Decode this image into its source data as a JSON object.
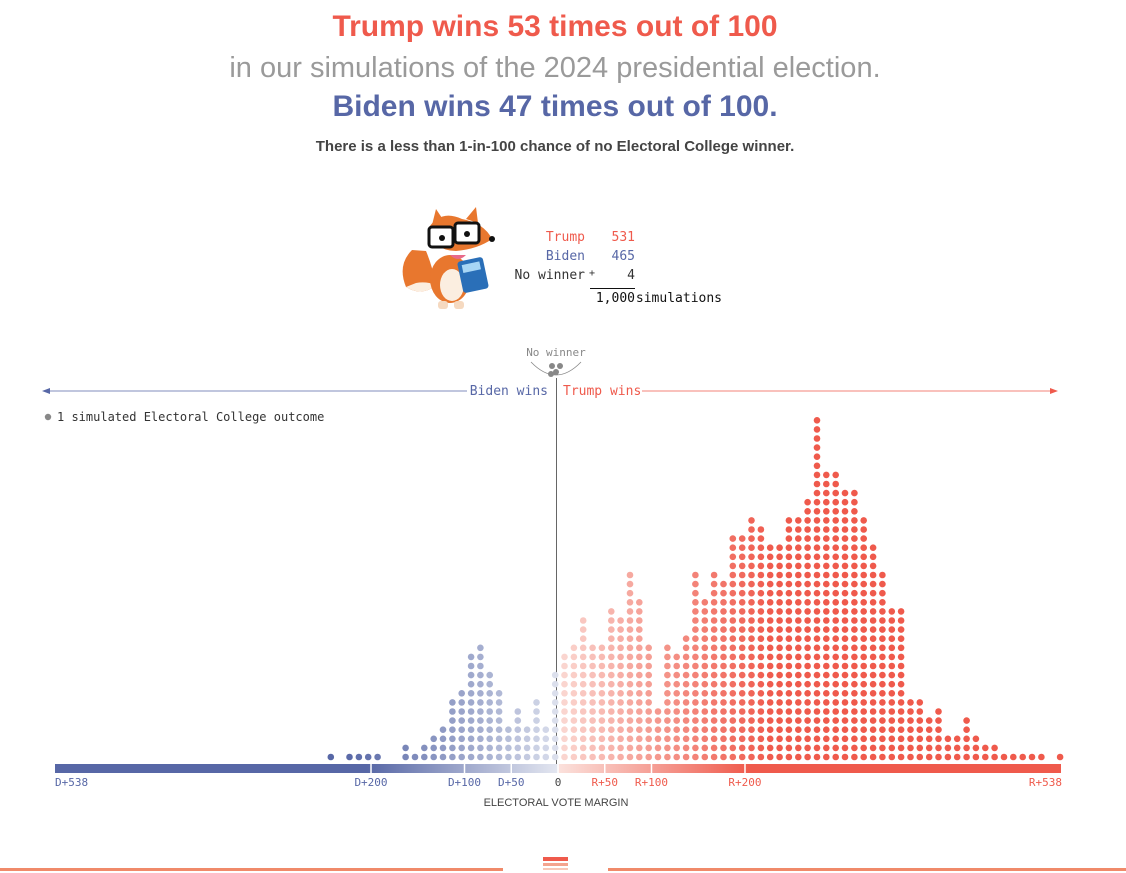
{
  "headline": {
    "trump_line": "Trump wins 53 times out of 100",
    "middle_line": "in our simulations of the 2024 presidential election.",
    "biden_line": "Biden wins 47 times out of 100.",
    "note": "There is a less than 1-in-100 chance of no Electoral College winner."
  },
  "tally": {
    "rows": [
      {
        "label": "Trump",
        "value": "531",
        "color": "#ef5a4c"
      },
      {
        "label": "Biden",
        "value": "465",
        "color": "#5767a6"
      },
      {
        "label": "No winner",
        "value": "4",
        "color": "#333333"
      }
    ],
    "plus_sign": "+",
    "total": "1,000",
    "total_label": "simulations"
  },
  "colors": {
    "trump": "#ef5a4c",
    "biden": "#5767a6",
    "neutral": "#888888"
  },
  "chart_data": {
    "type": "scatter",
    "subtype": "dot histogram",
    "title": "",
    "xlabel": "ELECTORAL VOTE MARGIN",
    "ylabel": "",
    "xlim": [
      -538,
      538
    ],
    "unit_note": "Each dot = 1 simulated Electoral College outcome",
    "legend_text": "1 simulated Electoral College outcome",
    "left_arrow_label": "Biden wins",
    "right_arrow_label": "Trump wins",
    "no_winner_label": "No winner",
    "no_winner_count": 4,
    "tick_labels": [
      {
        "value": -538,
        "label": "D+538"
      },
      {
        "value": -200,
        "label": "D+200"
      },
      {
        "value": -100,
        "label": "D+100"
      },
      {
        "value": -50,
        "label": "D+50"
      },
      {
        "value": 0,
        "label": "0"
      },
      {
        "value": 50,
        "label": "R+50"
      },
      {
        "value": 100,
        "label": "R+100"
      },
      {
        "value": 200,
        "label": "R+200"
      },
      {
        "value": 538,
        "label": "R+538"
      }
    ],
    "bins": {
      "bin_width": 10,
      "start": -538,
      "counts": [
        0,
        0,
        0,
        0,
        0,
        0,
        0,
        0,
        0,
        0,
        0,
        0,
        0,
        0,
        0,
        0,
        0,
        0,
        0,
        0,
        0,
        0,
        0,
        0,
        0,
        0,
        0,
        0,
        0,
        1,
        0,
        1,
        1,
        1,
        1,
        0,
        0,
        2,
        1,
        2,
        3,
        4,
        7,
        8,
        12,
        13,
        10,
        8,
        4,
        6,
        4,
        7,
        4,
        10,
        12,
        13,
        16,
        13,
        13,
        17,
        16,
        21,
        18,
        13,
        6,
        13,
        12,
        14,
        21,
        18,
        21,
        20,
        25,
        25,
        27,
        26,
        24,
        24,
        27,
        27,
        29,
        38,
        32,
        32,
        30,
        30,
        27,
        24,
        21,
        17,
        17,
        7,
        7,
        5,
        6,
        3,
        3,
        5,
        3,
        2,
        2,
        1,
        1,
        1,
        1,
        1,
        0,
        1,
        0,
        0,
        0,
        0,
        0
      ]
    }
  }
}
